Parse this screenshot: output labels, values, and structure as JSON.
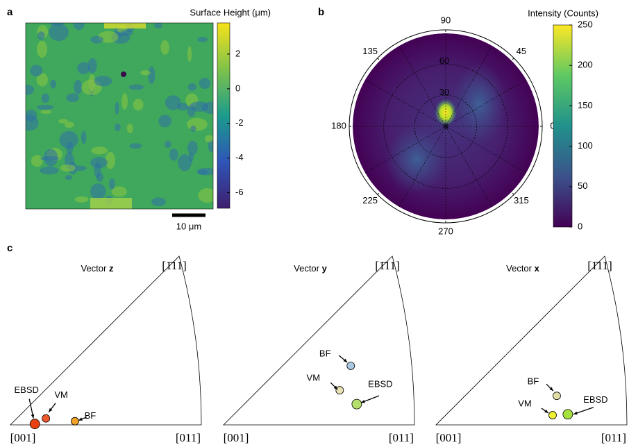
{
  "panel_labels": [
    "a",
    "b",
    "c"
  ],
  "chart_data": [
    {
      "type": "heatmap",
      "colorbar_label": "Surface Height (μm)",
      "clim": [
        -6.9,
        3.8
      ],
      "cticks": [
        -6,
        -4,
        -2,
        0,
        2
      ],
      "scale_bar": "10 μm"
    },
    {
      "type": "polar",
      "colorbar_label": "Intensity (Counts)",
      "clim": [
        0,
        250
      ],
      "cticks": [
        0,
        50,
        100,
        150,
        200,
        250
      ],
      "rlim": [
        0,
        90
      ],
      "rticks": [
        30,
        60
      ],
      "thetaticks": [
        0,
        45,
        90,
        135,
        180,
        225,
        270,
        315
      ]
    },
    {
      "type": "ipf",
      "title": "Vector",
      "vector": "z",
      "corners": [
        "[001]",
        "[011]",
        "[1̄11]"
      ],
      "xlim": [
        0,
        0.4142
      ],
      "series": [
        {
          "name": "EBSD",
          "color": "#e8400f",
          "x": [
            0.053
          ],
          "values": [
            0.002
          ]
        },
        {
          "name": "VM",
          "color": "#ee5a2c",
          "x": [
            0.077
          ],
          "values": [
            0.014
          ]
        },
        {
          "name": "BF",
          "color": "#f2a226",
          "x": [
            0.14
          ],
          "values": [
            0.008
          ]
        }
      ]
    },
    {
      "type": "ipf",
      "title": "Vector",
      "vector": "y",
      "corners": [
        "[001]",
        "[011]",
        "[1̄11]"
      ],
      "xlim": [
        0,
        0.4142
      ],
      "series": [
        {
          "name": "EBSD",
          "color": "#b6e06e",
          "x": [
            0.289
          ],
          "values": [
            0.045
          ]
        },
        {
          "name": "VM",
          "color": "#e8e2b4",
          "x": [
            0.252
          ],
          "values": [
            0.075
          ]
        },
        {
          "name": "BF",
          "color": "#a9c9e2",
          "x": [
            0.276
          ],
          "values": [
            0.128
          ]
        }
      ]
    },
    {
      "type": "ipf",
      "title": "Vector",
      "vector": "x",
      "corners": [
        "[001]",
        "[011]",
        "[1̄11]"
      ],
      "xlim": [
        0,
        0.4142
      ],
      "series": [
        {
          "name": "EBSD",
          "color": "#a6e23e",
          "x": [
            0.286
          ],
          "values": [
            0.023
          ]
        },
        {
          "name": "VM",
          "color": "#eef030",
          "x": [
            0.253
          ],
          "values": [
            0.021
          ]
        },
        {
          "name": "BF",
          "color": "#e0e0a6",
          "x": [
            0.262
          ],
          "values": [
            0.063
          ]
        }
      ]
    }
  ]
}
